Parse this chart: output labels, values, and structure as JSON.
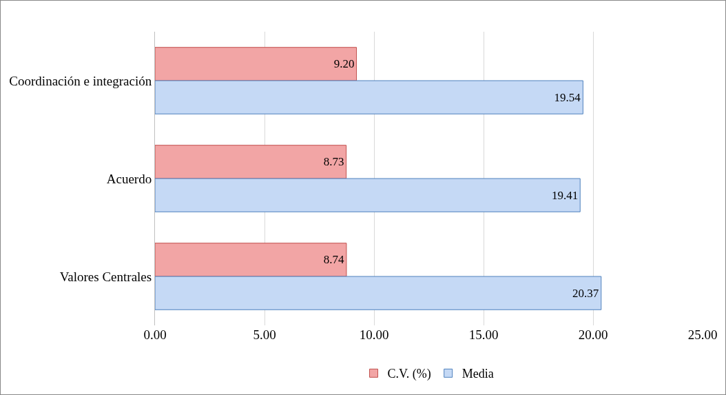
{
  "chart_data": {
    "type": "bar",
    "orientation": "horizontal",
    "categories": [
      "Coordinación e integración",
      "Acuerdo",
      "Valores Centrales"
    ],
    "series": [
      {
        "name": "C.V. (%)",
        "color": "#f2a5a5",
        "values": [
          9.2,
          8.73,
          8.74
        ],
        "value_labels": [
          "9.20",
          "8.73",
          "8.74"
        ]
      },
      {
        "name": "Media",
        "color": "#c5d9f5",
        "values": [
          19.54,
          19.41,
          20.37
        ],
        "value_labels": [
          "19.54",
          "19.41",
          "20.37"
        ]
      }
    ],
    "xlim": [
      0,
      25
    ],
    "xticks": [
      {
        "value": 0,
        "label": "0.00"
      },
      {
        "value": 5,
        "label": "5.00"
      },
      {
        "value": 10,
        "label": "10.00"
      },
      {
        "value": 15,
        "label": "15.00"
      },
      {
        "value": 20,
        "label": "20.00"
      },
      {
        "value": 25,
        "label": "25.00"
      }
    ],
    "grid": "x",
    "legend": "bottom"
  }
}
